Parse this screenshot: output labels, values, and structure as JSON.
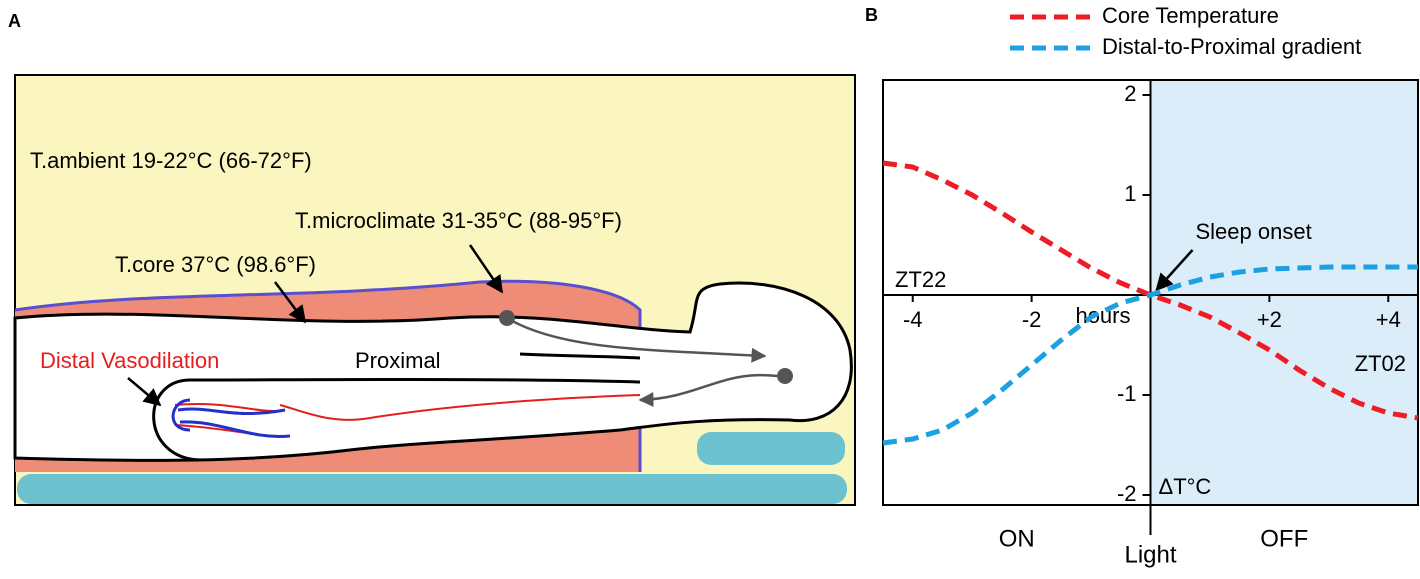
{
  "panel_a": {
    "label": "A",
    "ambient": "T.ambient 19-22°C (66-72°F)",
    "microclimate": "T.microclimate 31-35°C (88-95°F)",
    "core": "T.core 37°C (98.6°F)",
    "distal": "Distal Vasodilation",
    "proximal": "Proximal"
  },
  "chart_data": {
    "type": "line",
    "panel_label": "B",
    "x": [
      -4.5,
      -4,
      -3.5,
      -3,
      -2.5,
      -2,
      -1.5,
      -1,
      -0.5,
      0,
      0.5,
      1,
      1.5,
      2,
      2.5,
      3,
      3.5,
      4,
      4.5
    ],
    "series": [
      {
        "name": "Core Temperature",
        "color": "#ee1c25",
        "values": [
          1.32,
          1.28,
          1.15,
          1.0,
          0.82,
          0.63,
          0.45,
          0.27,
          0.12,
          0,
          -0.1,
          -0.22,
          -0.38,
          -0.55,
          -0.75,
          -0.93,
          -1.08,
          -1.18,
          -1.23
        ]
      },
      {
        "name": "Distal-to-Proximal gradient",
        "color": "#1ba1e2",
        "values": [
          -1.48,
          -1.44,
          -1.35,
          -1.18,
          -0.95,
          -0.7,
          -0.45,
          -0.22,
          -0.08,
          0,
          0.1,
          0.18,
          0.23,
          0.26,
          0.27,
          0.28,
          0.28,
          0.28,
          0.28
        ]
      }
    ],
    "xlim": [
      -4.5,
      4.5
    ],
    "ylim": [
      -2.1,
      2.15
    ],
    "xticks": [
      -4,
      -2,
      {
        "value": 2,
        "label": "+2"
      },
      {
        "value": 4,
        "label": "+4"
      }
    ],
    "yticks": [
      -2,
      -1,
      1,
      2
    ],
    "x_label": "hours",
    "y_label": "ΔT°C",
    "annotations": {
      "left": "ZT22",
      "right": "ZT02",
      "onset": "Sleep onset"
    },
    "light_label": "Light",
    "regions": [
      {
        "label": "ON",
        "from": -4.5,
        "to": 0
      },
      {
        "label": "OFF",
        "from": 0,
        "to": 4.5,
        "color": "#dcedfa"
      }
    ]
  }
}
